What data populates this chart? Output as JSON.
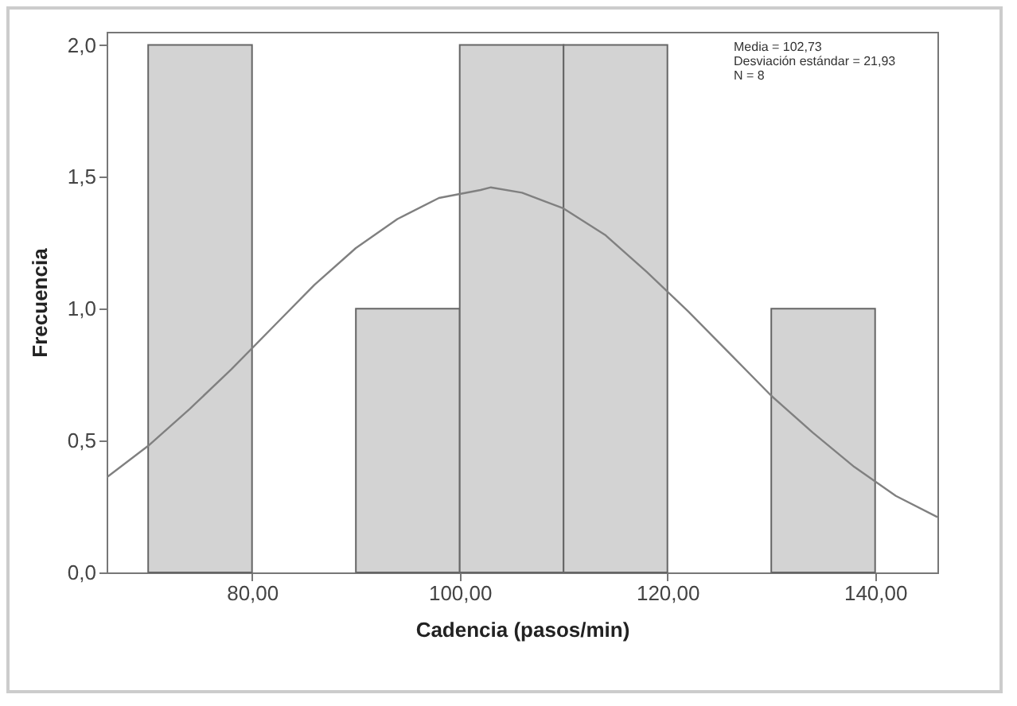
{
  "chart_data": {
    "type": "histogram",
    "xlabel": "Cadencia (pasos/min)",
    "ylabel": "Frecuencia",
    "bins": [
      70,
      80,
      90,
      100,
      110,
      120,
      130,
      140
    ],
    "values": [
      2,
      0,
      1,
      2,
      2,
      0,
      1
    ],
    "color": "#d3d3d3",
    "series": [
      {
        "type": "line",
        "color": "#808080",
        "x": [
          66,
          70,
          74,
          78,
          82,
          86,
          90,
          94,
          98,
          102,
          103,
          106,
          110,
          114,
          118,
          122,
          126,
          130,
          134,
          138,
          142,
          146
        ],
        "values": [
          0.36,
          0.48,
          0.62,
          0.77,
          0.93,
          1.09,
          1.23,
          1.34,
          1.42,
          1.45,
          1.46,
          1.44,
          1.38,
          1.28,
          1.14,
          0.99,
          0.83,
          0.67,
          0.53,
          0.4,
          0.29,
          0.21
        ]
      }
    ],
    "xlim": [
      66,
      146
    ],
    "ylim": [
      0,
      2.05
    ],
    "xticks": [
      {
        "value": 80,
        "label": "80,00"
      },
      {
        "value": 100,
        "label": "100,00"
      },
      {
        "value": 120,
        "label": "120,00"
      },
      {
        "value": 140,
        "label": "140,00"
      }
    ],
    "yticks": [
      {
        "value": 0,
        "label": "0,0"
      },
      {
        "value": 0.5,
        "label": "0,5"
      },
      {
        "value": 1,
        "label": "1,0"
      },
      {
        "value": 1.5,
        "label": "1,5"
      },
      {
        "value": 2,
        "label": "2,0"
      }
    ],
    "annotations": [
      "Media = 102,73",
      "Desviación estándar = 21,93",
      "N = 8"
    ],
    "grid": false
  }
}
